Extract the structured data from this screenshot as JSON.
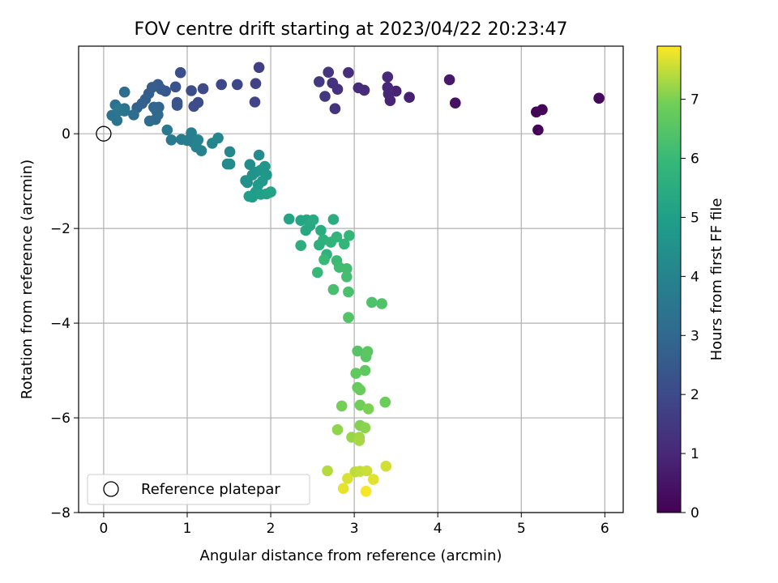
{
  "chart_data": {
    "type": "scatter",
    "title": "FOV centre drift starting at 2023/04/22 20:23:47",
    "xlabel": "Angular distance from reference (arcmin)",
    "ylabel": "Rotation from reference (arcmin)",
    "xlim": [
      -0.3,
      6.22
    ],
    "ylim": [
      -8.0,
      1.85
    ],
    "x_ticks": [
      0,
      1,
      2,
      3,
      4,
      5,
      6
    ],
    "y_ticks": [
      -8,
      -6,
      -4,
      -2,
      0
    ],
    "grid": true,
    "colormap": "viridis",
    "colorbar": {
      "label": "Hours from first FF file",
      "range": [
        0,
        7.9
      ],
      "ticks": [
        0,
        1,
        2,
        3,
        4,
        5,
        6,
        7
      ]
    },
    "legend": {
      "position": "lower-left",
      "entries": [
        "Reference platepar"
      ]
    },
    "reference_point": {
      "x": 0,
      "y": 0
    },
    "points": [
      {
        "x": 5.2,
        "y": 0.08,
        "c": 0.05
      },
      {
        "x": 5.18,
        "y": 0.46,
        "c": 0.1
      },
      {
        "x": 5.25,
        "y": 0.51,
        "c": 0.12
      },
      {
        "x": 5.93,
        "y": 0.75,
        "c": 0.2
      },
      {
        "x": 4.21,
        "y": 0.65,
        "c": 0.4
      },
      {
        "x": 4.14,
        "y": 1.14,
        "c": 0.6
      },
      {
        "x": 3.66,
        "y": 0.77,
        "c": 0.8
      },
      {
        "x": 3.5,
        "y": 0.9,
        "c": 0.85
      },
      {
        "x": 3.43,
        "y": 0.7,
        "c": 0.9
      },
      {
        "x": 3.41,
        "y": 0.84,
        "c": 0.95
      },
      {
        "x": 3.4,
        "y": 0.98,
        "c": 1.0
      },
      {
        "x": 3.4,
        "y": 1.2,
        "c": 1.05
      },
      {
        "x": 3.12,
        "y": 0.92,
        "c": 1.1
      },
      {
        "x": 3.05,
        "y": 0.97,
        "c": 1.15
      },
      {
        "x": 2.93,
        "y": 1.29,
        "c": 1.2
      },
      {
        "x": 2.8,
        "y": 0.94,
        "c": 1.25
      },
      {
        "x": 2.74,
        "y": 1.07,
        "c": 1.3
      },
      {
        "x": 2.77,
        "y": 0.53,
        "c": 1.35
      },
      {
        "x": 2.69,
        "y": 1.3,
        "c": 1.4
      },
      {
        "x": 2.65,
        "y": 0.79,
        "c": 1.45
      },
      {
        "x": 2.58,
        "y": 1.1,
        "c": 1.5
      },
      {
        "x": 1.86,
        "y": 1.4,
        "c": 1.7
      },
      {
        "x": 1.82,
        "y": 1.06,
        "c": 1.8
      },
      {
        "x": 1.81,
        "y": 0.67,
        "c": 1.85
      },
      {
        "x": 1.6,
        "y": 1.04,
        "c": 1.9
      },
      {
        "x": 1.41,
        "y": 1.04,
        "c": 1.95
      },
      {
        "x": 1.19,
        "y": 0.95,
        "c": 2.0
      },
      {
        "x": 1.13,
        "y": 0.66,
        "c": 2.05
      },
      {
        "x": 1.08,
        "y": 0.58,
        "c": 2.1
      },
      {
        "x": 1.05,
        "y": 0.91,
        "c": 2.15
      },
      {
        "x": 0.92,
        "y": 1.29,
        "c": 2.2
      },
      {
        "x": 0.86,
        "y": 0.99,
        "c": 2.25
      },
      {
        "x": 0.88,
        "y": 0.66,
        "c": 2.3
      },
      {
        "x": 0.88,
        "y": 0.6,
        "c": 2.35
      },
      {
        "x": 0.74,
        "y": 0.9,
        "c": 2.45
      },
      {
        "x": 0.69,
        "y": 0.94,
        "c": 2.5
      },
      {
        "x": 0.65,
        "y": 1.04,
        "c": 2.55
      },
      {
        "x": 0.58,
        "y": 0.98,
        "c": 2.6
      },
      {
        "x": 0.54,
        "y": 0.85,
        "c": 2.65
      },
      {
        "x": 0.5,
        "y": 0.73,
        "c": 2.7
      },
      {
        "x": 0.46,
        "y": 0.64,
        "c": 2.75
      },
      {
        "x": 0.4,
        "y": 0.55,
        "c": 2.8
      },
      {
        "x": 0.66,
        "y": 0.56,
        "c": 2.85
      },
      {
        "x": 0.6,
        "y": 0.56,
        "c": 2.9
      },
      {
        "x": 0.63,
        "y": 0.49,
        "c": 2.95
      },
      {
        "x": 0.65,
        "y": 0.4,
        "c": 3.0
      },
      {
        "x": 0.62,
        "y": 0.3,
        "c": 3.05
      },
      {
        "x": 0.55,
        "y": 0.27,
        "c": 3.1
      },
      {
        "x": 0.36,
        "y": 0.4,
        "c": 3.15
      },
      {
        "x": 0.25,
        "y": 0.88,
        "c": 3.2
      },
      {
        "x": 0.25,
        "y": 0.53,
        "c": 3.25
      },
      {
        "x": 0.14,
        "y": 0.61,
        "c": 3.3
      },
      {
        "x": 0.1,
        "y": 0.39,
        "c": 3.35
      },
      {
        "x": 0.16,
        "y": 0.28,
        "c": 3.4
      },
      {
        "x": 0.19,
        "y": 0.49,
        "c": 3.45
      },
      {
        "x": 0.25,
        "y": 0.48,
        "c": 3.5
      },
      {
        "x": 0.18,
        "y": 0.53,
        "c": 3.55
      },
      {
        "x": 0.76,
        "y": 0.08,
        "c": 3.6
      },
      {
        "x": 0.81,
        "y": -0.13,
        "c": 3.65
      },
      {
        "x": 0.93,
        "y": -0.12,
        "c": 3.7
      },
      {
        "x": 1.0,
        "y": -0.14,
        "c": 3.75
      },
      {
        "x": 1.07,
        "y": -0.18,
        "c": 3.8
      },
      {
        "x": 1.05,
        "y": 0.02,
        "c": 3.85
      },
      {
        "x": 1.13,
        "y": -0.13,
        "c": 3.9
      },
      {
        "x": 1.11,
        "y": -0.28,
        "c": 3.95
      },
      {
        "x": 1.17,
        "y": -0.36,
        "c": 4.0
      },
      {
        "x": 1.3,
        "y": -0.2,
        "c": 4.05
      },
      {
        "x": 1.37,
        "y": -0.09,
        "c": 4.1
      },
      {
        "x": 1.51,
        "y": -0.38,
        "c": 4.15
      },
      {
        "x": 1.48,
        "y": -0.64,
        "c": 4.2
      },
      {
        "x": 1.51,
        "y": -0.64,
        "c": 4.25
      },
      {
        "x": 1.86,
        "y": -0.45,
        "c": 4.3
      },
      {
        "x": 1.75,
        "y": -0.65,
        "c": 4.35
      },
      {
        "x": 1.7,
        "y": -0.99,
        "c": 4.4
      },
      {
        "x": 1.72,
        "y": -1.03,
        "c": 4.45
      },
      {
        "x": 1.78,
        "y": -0.87,
        "c": 4.5
      },
      {
        "x": 1.82,
        "y": -0.81,
        "c": 4.55
      },
      {
        "x": 1.88,
        "y": -0.77,
        "c": 4.6
      },
      {
        "x": 1.93,
        "y": -0.69,
        "c": 4.65
      },
      {
        "x": 1.95,
        "y": -0.87,
        "c": 4.7
      },
      {
        "x": 1.9,
        "y": -1.0,
        "c": 4.75
      },
      {
        "x": 1.85,
        "y": -1.08,
        "c": 4.8
      },
      {
        "x": 1.82,
        "y": -1.23,
        "c": 4.85
      },
      {
        "x": 1.78,
        "y": -1.34,
        "c": 4.9
      },
      {
        "x": 1.74,
        "y": -1.32,
        "c": 4.95
      },
      {
        "x": 1.88,
        "y": -1.28,
        "c": 5.0
      },
      {
        "x": 1.95,
        "y": -1.27,
        "c": 5.05
      },
      {
        "x": 2.0,
        "y": -1.23,
        "c": 5.1
      },
      {
        "x": 2.22,
        "y": -1.8,
        "c": 5.15
      },
      {
        "x": 2.36,
        "y": -1.83,
        "c": 5.2
      },
      {
        "x": 2.43,
        "y": -1.82,
        "c": 5.25
      },
      {
        "x": 2.47,
        "y": -1.94,
        "c": 5.3
      },
      {
        "x": 2.42,
        "y": -2.04,
        "c": 5.35
      },
      {
        "x": 2.51,
        "y": -1.82,
        "c": 5.4
      },
      {
        "x": 2.6,
        "y": -2.04,
        "c": 5.45
      },
      {
        "x": 2.75,
        "y": -1.81,
        "c": 5.5
      },
      {
        "x": 2.36,
        "y": -2.36,
        "c": 5.55
      },
      {
        "x": 2.58,
        "y": -2.35,
        "c": 5.6
      },
      {
        "x": 2.63,
        "y": -2.24,
        "c": 5.65
      },
      {
        "x": 2.67,
        "y": -2.55,
        "c": 5.7
      },
      {
        "x": 2.72,
        "y": -2.29,
        "c": 5.75
      },
      {
        "x": 2.79,
        "y": -2.18,
        "c": 5.8
      },
      {
        "x": 2.88,
        "y": -2.33,
        "c": 5.85
      },
      {
        "x": 2.94,
        "y": -2.15,
        "c": 5.9
      },
      {
        "x": 2.56,
        "y": -2.93,
        "c": 5.95
      },
      {
        "x": 2.64,
        "y": -2.66,
        "c": 6.0
      },
      {
        "x": 2.79,
        "y": -2.68,
        "c": 6.05
      },
      {
        "x": 2.82,
        "y": -2.82,
        "c": 6.1
      },
      {
        "x": 2.91,
        "y": -2.85,
        "c": 6.15
      },
      {
        "x": 2.91,
        "y": -3.02,
        "c": 6.2
      },
      {
        "x": 2.75,
        "y": -3.29,
        "c": 6.25
      },
      {
        "x": 2.93,
        "y": -3.34,
        "c": 6.3
      },
      {
        "x": 3.21,
        "y": -3.56,
        "c": 6.35
      },
      {
        "x": 3.33,
        "y": -3.59,
        "c": 6.4
      },
      {
        "x": 2.93,
        "y": -3.88,
        "c": 6.45
      },
      {
        "x": 3.04,
        "y": -4.59,
        "c": 6.5
      },
      {
        "x": 3.14,
        "y": -4.71,
        "c": 6.55
      },
      {
        "x": 3.16,
        "y": -4.6,
        "c": 6.6
      },
      {
        "x": 3.13,
        "y": -5.0,
        "c": 6.65
      },
      {
        "x": 3.02,
        "y": -5.06,
        "c": 6.7
      },
      {
        "x": 3.04,
        "y": -5.36,
        "c": 6.75
      },
      {
        "x": 3.07,
        "y": -5.41,
        "c": 6.8
      },
      {
        "x": 3.37,
        "y": -5.67,
        "c": 6.85
      },
      {
        "x": 3.07,
        "y": -5.73,
        "c": 6.9
      },
      {
        "x": 2.85,
        "y": -5.75,
        "c": 6.95
      },
      {
        "x": 3.17,
        "y": -5.81,
        "c": 7.0
      },
      {
        "x": 3.07,
        "y": -6.16,
        "c": 7.05
      },
      {
        "x": 3.13,
        "y": -6.21,
        "c": 7.1
      },
      {
        "x": 2.8,
        "y": -6.25,
        "c": 7.15
      },
      {
        "x": 2.97,
        "y": -6.41,
        "c": 7.2
      },
      {
        "x": 3.06,
        "y": -6.41,
        "c": 7.25
      },
      {
        "x": 3.06,
        "y": -6.48,
        "c": 7.3
      },
      {
        "x": 2.68,
        "y": -7.12,
        "c": 7.4
      },
      {
        "x": 3.01,
        "y": -7.14,
        "c": 7.45
      },
      {
        "x": 3.07,
        "y": -7.13,
        "c": 7.5
      },
      {
        "x": 3.15,
        "y": -7.12,
        "c": 7.55
      },
      {
        "x": 3.38,
        "y": -7.02,
        "c": 7.6
      },
      {
        "x": 2.92,
        "y": -7.28,
        "c": 7.65
      },
      {
        "x": 3.23,
        "y": -7.3,
        "c": 7.7
      },
      {
        "x": 2.87,
        "y": -7.49,
        "c": 7.75
      },
      {
        "x": 3.14,
        "y": -7.55,
        "c": 7.85
      }
    ]
  }
}
